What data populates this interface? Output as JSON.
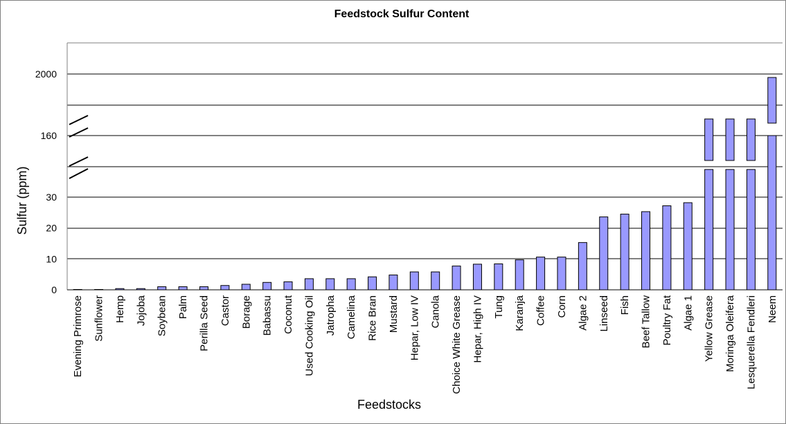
{
  "chart_data": {
    "type": "bar",
    "title": "Feedstock Sulfur Content",
    "xlabel": "Feedstocks",
    "ylabel": "Sulfur (ppm)",
    "axis_break": true,
    "ylim_low": [
      0,
      30
    ],
    "y_ticks": [
      "0",
      "10",
      "20",
      "30",
      "160",
      "2000"
    ],
    "grid": true,
    "bar_color": "#9999ff",
    "categories": [
      "Evening Primrose",
      "Sunflower",
      "Hemp",
      "Jojoba",
      "Soybean",
      "Palm",
      "Perilla Seed",
      "Castor",
      "Borage",
      "Babassu",
      "Coconut",
      "Used Cooking Oil",
      "Jatropha",
      "Camelina",
      "Rice Bran",
      "Mustard",
      "Hepar, Low IV",
      "Canola",
      "Choice White Grease",
      "Hepar, High IV",
      "Tung",
      "Karanja",
      "Coffee",
      "Corn",
      "Algae 2",
      "Linseed",
      "Fish",
      "Beef Tallow",
      "Poultry Fat",
      "Algae 1",
      "Yellow Grease",
      "Moringa Oleifera",
      "Lesquerella Fendleri",
      "Neem"
    ],
    "values": [
      0,
      0,
      0.4,
      0.4,
      1,
      1,
      1,
      1.4,
      1.8,
      2.4,
      2.6,
      3.6,
      3.6,
      3.6,
      4.2,
      4.8,
      5.8,
      5.8,
      7.7,
      8.3,
      8.4,
      9.7,
      10.6,
      10.6,
      15.3,
      23.6,
      24.5,
      25.3,
      27.2,
      28.2,
      30.8,
      31.7,
      160,
      2000
    ]
  }
}
